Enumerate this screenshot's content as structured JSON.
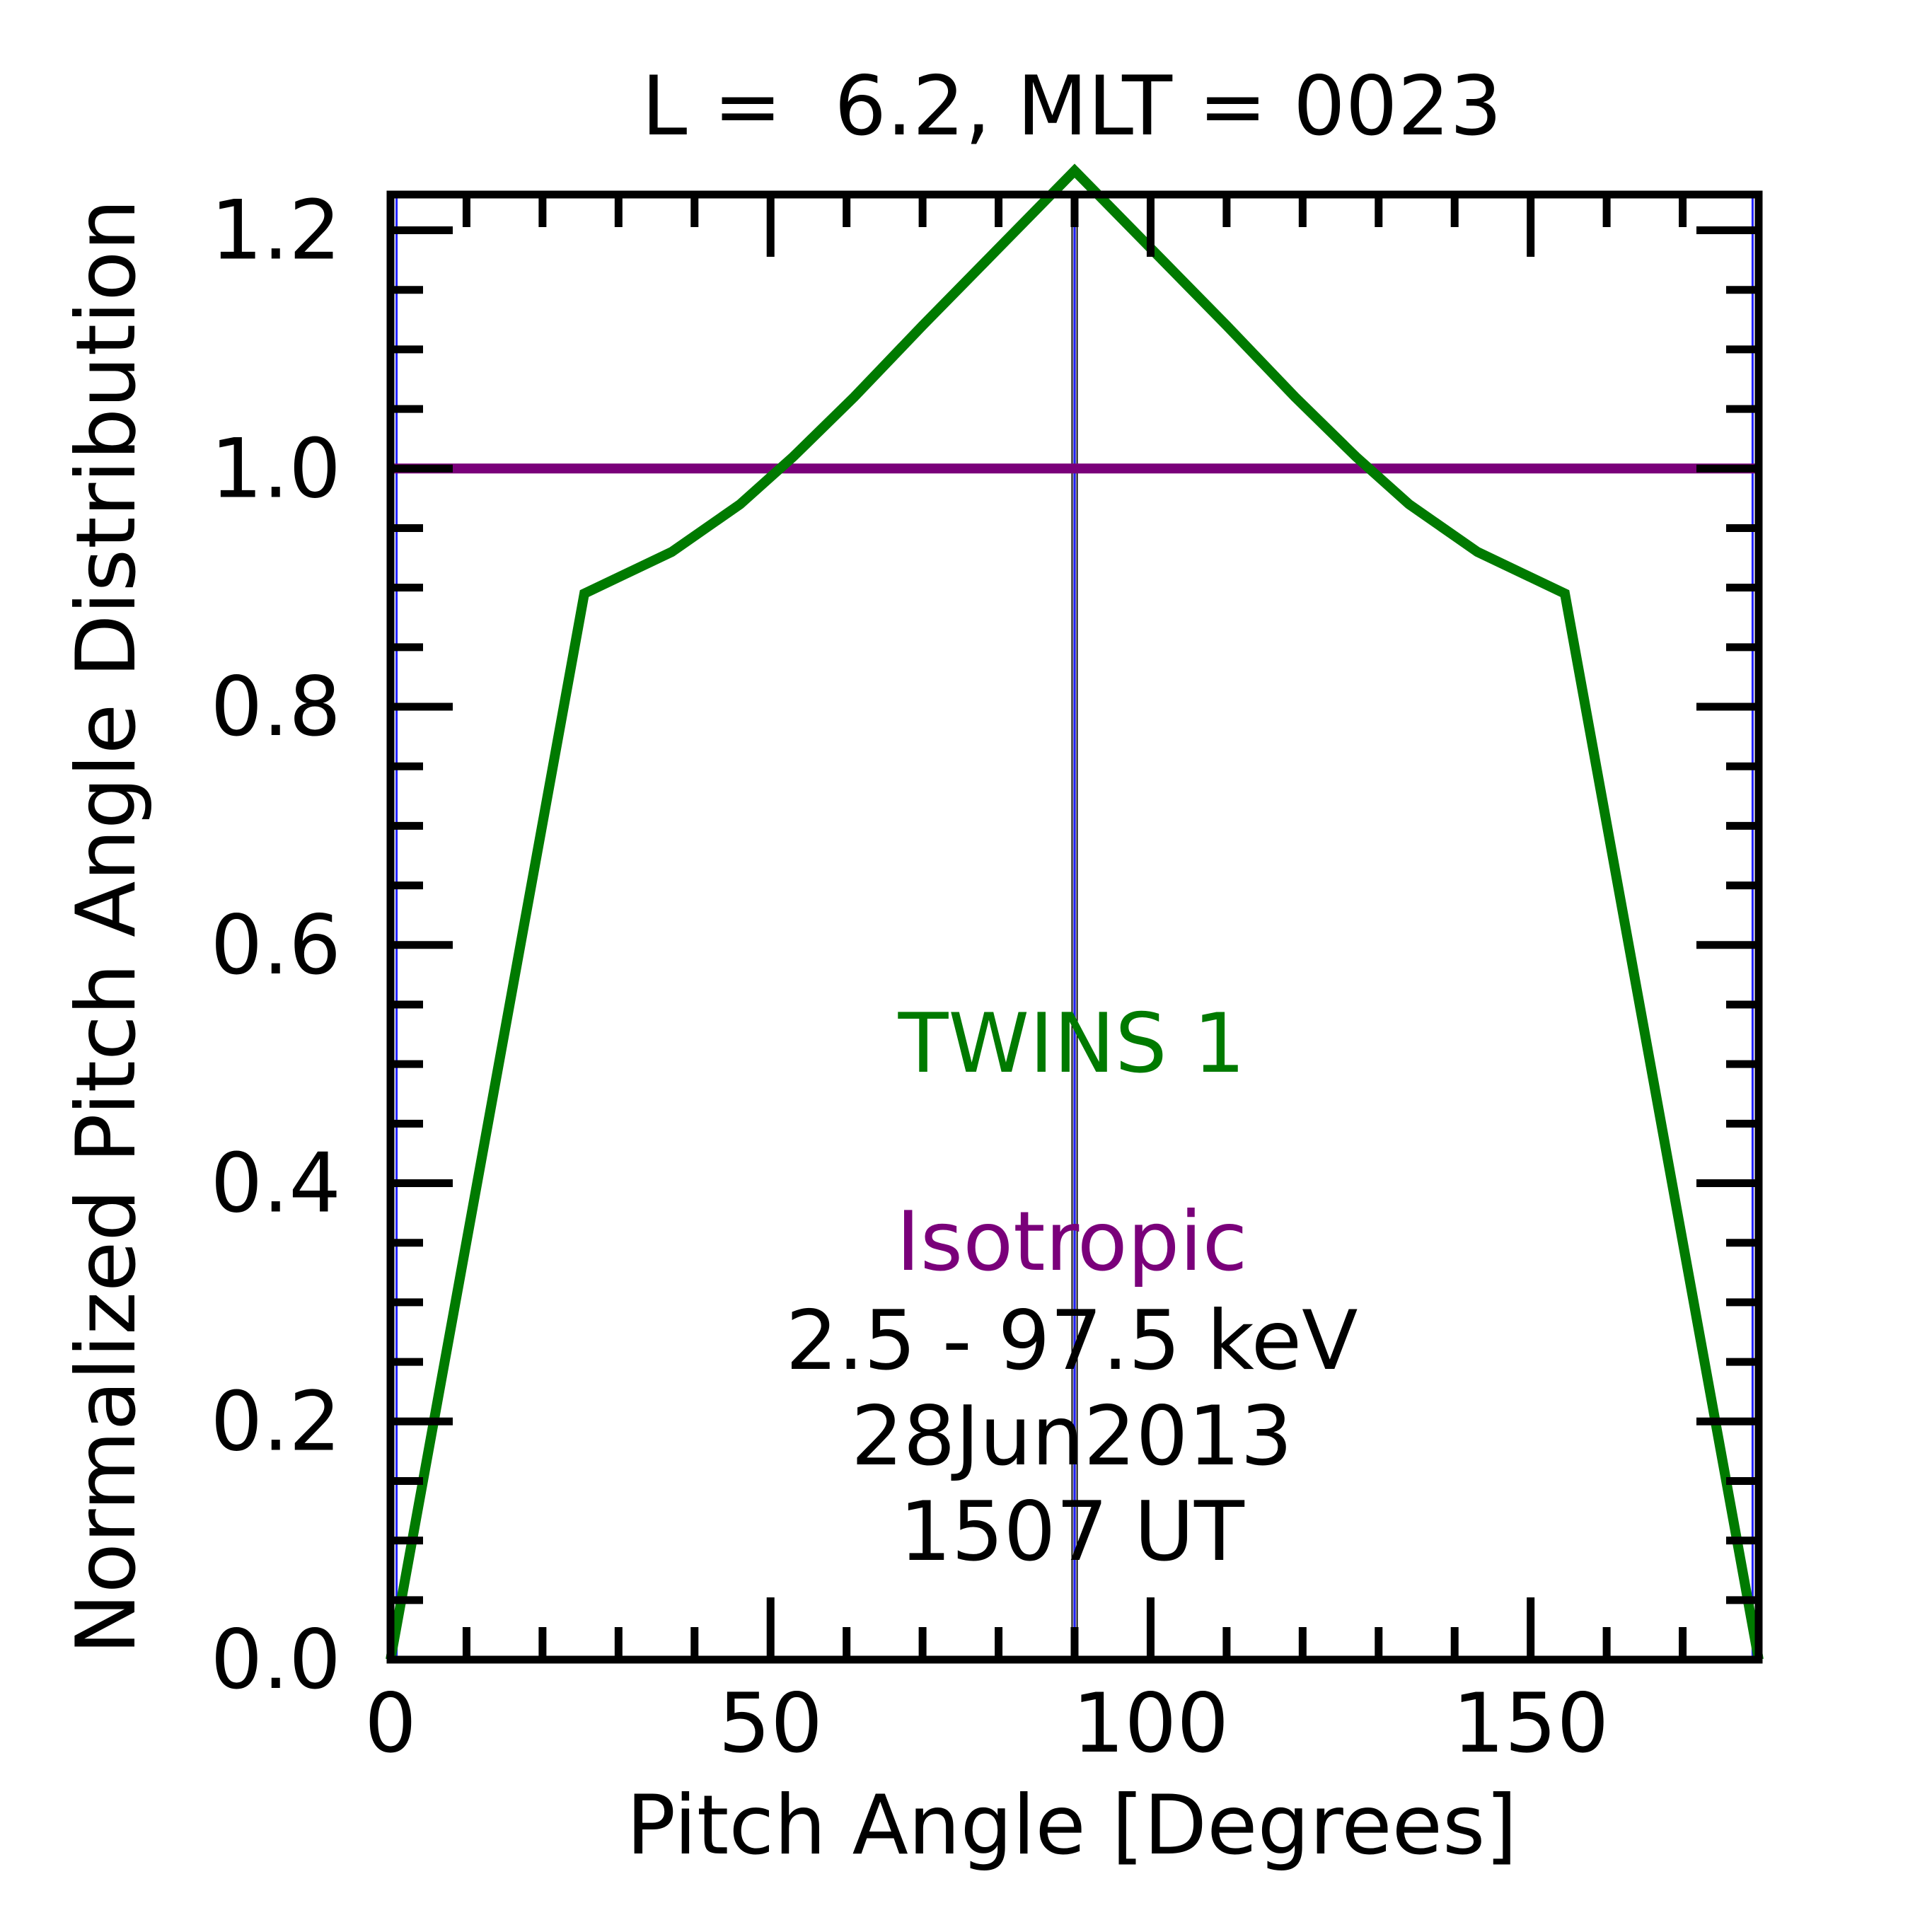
{
  "chart_data": {
    "type": "line",
    "title": "L =  6.2, MLT = 0023",
    "xlabel": "Pitch Angle [Degrees]",
    "ylabel": "Normalized Pitch Angle Distribution",
    "xlim": [
      0,
      180
    ],
    "ylim": [
      0,
      1.23
    ],
    "xticks": [
      0,
      50,
      100,
      150
    ],
    "xtick_labels": [
      "0",
      "50",
      "100",
      "150"
    ],
    "yticks": [
      0.0,
      0.2,
      0.4,
      0.6,
      0.8,
      1.0,
      1.2
    ],
    "ytick_labels": [
      "0.0",
      "0.2",
      "0.4",
      "0.6",
      "0.8",
      "1.0",
      "1.2"
    ],
    "x_minor_step": 10,
    "y_minor_step": 0.05,
    "grid": false,
    "series": [
      {
        "name": "TWINS 1",
        "color": "#007a00",
        "x": [
          0,
          25.5,
          37,
          46,
          53,
          61,
          70,
          80,
          90,
          100,
          110,
          119,
          127,
          134,
          143,
          154.5,
          180
        ],
        "y": [
          0,
          0.895,
          0.93,
          0.97,
          1.01,
          1.06,
          1.12,
          1.185,
          1.25,
          1.185,
          1.12,
          1.06,
          1.01,
          0.97,
          0.93,
          0.895,
          0
        ]
      },
      {
        "name": "Isotropic",
        "color": "#7a007a",
        "x": [
          0,
          180
        ],
        "y": [
          1.0,
          1.0
        ]
      }
    ],
    "reference_lines": [
      {
        "orientation": "vertical",
        "x": 90,
        "colors": [
          "#000000",
          "#aaaaaa",
          "#2020ff"
        ]
      },
      {
        "orientation": "vertical",
        "x": 0.8,
        "colors": [
          "#2020ff"
        ]
      },
      {
        "orientation": "vertical",
        "x": 179.2,
        "colors": [
          "#2020ff"
        ]
      }
    ],
    "annotations": {
      "series_1": "TWINS 1",
      "series_2": "Isotropic",
      "energy": "2.5 - 97.5 keV",
      "date": "28Jun2013",
      "time": "1507 UT"
    },
    "colors": {
      "twins": "#007a00",
      "isotropic": "#7a007a",
      "text": "#000000"
    }
  }
}
